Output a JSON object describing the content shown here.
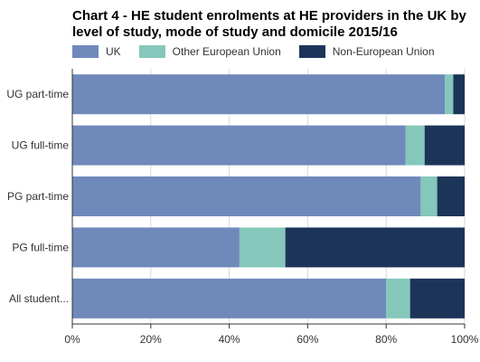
{
  "chart_data": {
    "type": "bar",
    "orientation": "horizontal",
    "stacked": true,
    "title": "Chart 4 - HE student enrolments at HE providers in the UK by level of study, mode of study and domicile 2015/16",
    "categories": [
      "UG part-time",
      "UG full-time",
      "PG part-time",
      "PG full-time",
      "All student..."
    ],
    "series": [
      {
        "name": "UK",
        "color": "#6f89bb",
        "values": [
          95.0,
          84.9,
          88.8,
          42.6,
          80.0
        ]
      },
      {
        "name": "Other European Union",
        "color": "#85c7bb",
        "values": [
          2.1,
          4.9,
          4.2,
          11.7,
          6.1
        ]
      },
      {
        "name": "Non-European Union",
        "color": "#1d3459",
        "values": [
          2.9,
          10.2,
          7.0,
          45.7,
          13.9
        ]
      }
    ],
    "xlim": [
      0,
      100
    ],
    "xticks": [
      0,
      20,
      40,
      60,
      80,
      100
    ],
    "xtick_labels": [
      "0%",
      "20%",
      "40%",
      "60%",
      "80%",
      "100%"
    ],
    "grid": true,
    "legend_position": "top-left"
  }
}
